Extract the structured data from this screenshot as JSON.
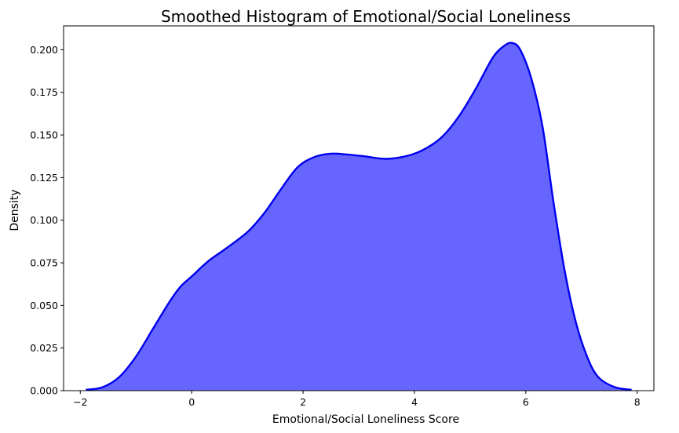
{
  "chart_data": {
    "type": "area",
    "title": "Smoothed Histogram of Emotional/Social Loneliness",
    "xlabel": "Emotional/Social Loneliness Score",
    "ylabel": "Density",
    "xlim": [
      -2.3,
      8.3
    ],
    "ylim": [
      0,
      0.214
    ],
    "xticks": [
      -2,
      0,
      2,
      4,
      6,
      8
    ],
    "xtick_labels": [
      "−2",
      "0",
      "2",
      "4",
      "6",
      "8"
    ],
    "yticks": [
      0,
      0.025,
      0.05,
      0.075,
      0.1,
      0.125,
      0.15,
      0.175,
      0.2
    ],
    "ytick_labels": [
      "0.000",
      "0.025",
      "0.050",
      "0.075",
      "0.100",
      "0.125",
      "0.150",
      "0.175",
      "0.200"
    ],
    "grid": false,
    "fill_color": "#6666ff",
    "line_color": "#0000ee",
    "series": [
      {
        "x": [
          -1.9,
          -1.6,
          -1.3,
          -1.0,
          -0.7,
          -0.4,
          -0.2,
          0.0,
          0.3,
          0.6,
          1.0,
          1.3,
          1.6,
          1.9,
          2.2,
          2.5,
          2.8,
          3.1,
          3.5,
          3.9,
          4.2,
          4.5,
          4.8,
          5.1,
          5.4,
          5.6,
          5.75,
          5.9,
          6.1,
          6.3,
          6.5,
          6.7,
          6.9,
          7.1,
          7.3,
          7.6,
          7.9
        ],
        "y": [
          0.0005,
          0.002,
          0.008,
          0.02,
          0.036,
          0.052,
          0.061,
          0.067,
          0.076,
          0.083,
          0.093,
          0.104,
          0.118,
          0.131,
          0.137,
          0.139,
          0.1385,
          0.1375,
          0.136,
          0.138,
          0.142,
          0.149,
          0.161,
          0.177,
          0.195,
          0.202,
          0.204,
          0.2,
          0.183,
          0.155,
          0.11,
          0.07,
          0.04,
          0.02,
          0.008,
          0.002,
          0.0005
        ]
      }
    ]
  }
}
